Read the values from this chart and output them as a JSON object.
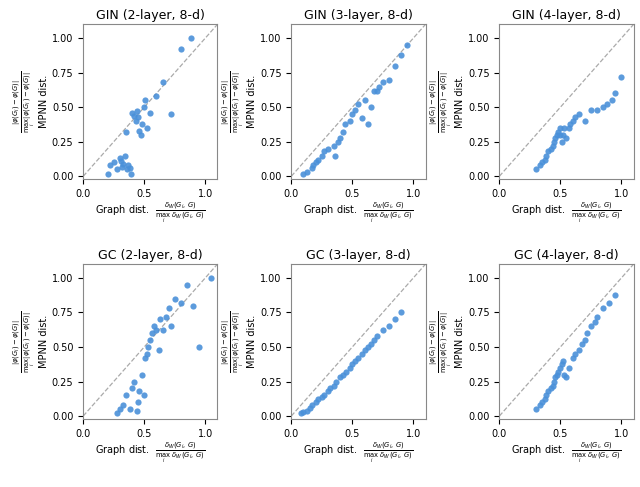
{
  "titles": [
    "GIN (2-layer, 8-d)",
    "GIN (3-layer, 8-d)",
    "GIN (4-layer, 8-d)",
    "GC (2-layer, 8-d)",
    "GC (3-layer, 8-d)",
    "GC (4-layer, 8-d)"
  ],
  "point_color": "#4A90D9",
  "point_size": 20,
  "alpha": 0.9,
  "scatter_data": [
    {
      "x": [
        0.2,
        0.22,
        0.25,
        0.28,
        0.3,
        0.31,
        0.32,
        0.33,
        0.34,
        0.35,
        0.36,
        0.37,
        0.38,
        0.39,
        0.4,
        0.42,
        0.43,
        0.44,
        0.45,
        0.46,
        0.47,
        0.48,
        0.5,
        0.51,
        0.52,
        0.55,
        0.6,
        0.65,
        0.72,
        0.8,
        0.88
      ],
      "y": [
        0.02,
        0.08,
        0.1,
        0.05,
        0.13,
        0.11,
        0.07,
        0.09,
        0.15,
        0.32,
        0.05,
        0.08,
        0.06,
        0.02,
        0.46,
        0.44,
        0.4,
        0.47,
        0.43,
        0.33,
        0.3,
        0.38,
        0.5,
        0.55,
        0.35,
        0.46,
        0.58,
        0.68,
        0.45,
        0.92,
        1.0
      ]
    },
    {
      "x": [
        0.1,
        0.13,
        0.17,
        0.18,
        0.2,
        0.22,
        0.25,
        0.27,
        0.3,
        0.35,
        0.36,
        0.38,
        0.4,
        0.42,
        0.44,
        0.48,
        0.5,
        0.52,
        0.55,
        0.58,
        0.6,
        0.63,
        0.65,
        0.68,
        0.7,
        0.72,
        0.75,
        0.8,
        0.85,
        0.9,
        0.95
      ],
      "y": [
        0.02,
        0.03,
        0.06,
        0.08,
        0.1,
        0.12,
        0.15,
        0.18,
        0.2,
        0.22,
        0.15,
        0.25,
        0.28,
        0.32,
        0.38,
        0.4,
        0.45,
        0.48,
        0.52,
        0.42,
        0.55,
        0.38,
        0.5,
        0.62,
        0.62,
        0.65,
        0.68,
        0.7,
        0.8,
        0.88,
        0.95
      ]
    },
    {
      "x": [
        0.3,
        0.33,
        0.35,
        0.37,
        0.38,
        0.4,
        0.42,
        0.44,
        0.45,
        0.46,
        0.47,
        0.48,
        0.5,
        0.5,
        0.51,
        0.52,
        0.53,
        0.55,
        0.57,
        0.58,
        0.6,
        0.62,
        0.65,
        0.7,
        0.75,
        0.8,
        0.85,
        0.88,
        0.92,
        0.95,
        1.0
      ],
      "y": [
        0.05,
        0.08,
        0.1,
        0.12,
        0.15,
        0.18,
        0.2,
        0.22,
        0.25,
        0.28,
        0.3,
        0.32,
        0.3,
        0.35,
        0.25,
        0.3,
        0.35,
        0.28,
        0.35,
        0.38,
        0.4,
        0.43,
        0.45,
        0.4,
        0.48,
        0.48,
        0.5,
        0.52,
        0.55,
        0.6,
        0.72
      ]
    },
    {
      "x": [
        0.28,
        0.3,
        0.33,
        0.35,
        0.38,
        0.4,
        0.42,
        0.44,
        0.45,
        0.46,
        0.48,
        0.5,
        0.51,
        0.52,
        0.53,
        0.55,
        0.56,
        0.58,
        0.6,
        0.62,
        0.63,
        0.65,
        0.68,
        0.7,
        0.72,
        0.75,
        0.8,
        0.85,
        0.9,
        0.95,
        1.05
      ],
      "y": [
        0.02,
        0.05,
        0.08,
        0.15,
        0.05,
        0.2,
        0.25,
        0.04,
        0.1,
        0.18,
        0.3,
        0.15,
        0.42,
        0.45,
        0.5,
        0.55,
        0.6,
        0.65,
        0.62,
        0.48,
        0.7,
        0.62,
        0.72,
        0.78,
        0.65,
        0.85,
        0.82,
        0.95,
        0.8,
        0.5,
        1.0
      ]
    },
    {
      "x": [
        0.08,
        0.1,
        0.13,
        0.15,
        0.17,
        0.2,
        0.22,
        0.25,
        0.27,
        0.3,
        0.32,
        0.35,
        0.37,
        0.4,
        0.42,
        0.45,
        0.48,
        0.5,
        0.52,
        0.55,
        0.58,
        0.6,
        0.63,
        0.65,
        0.68,
        0.7,
        0.75,
        0.8,
        0.85,
        0.9
      ],
      "y": [
        0.02,
        0.03,
        0.04,
        0.06,
        0.08,
        0.1,
        0.12,
        0.14,
        0.15,
        0.18,
        0.2,
        0.22,
        0.25,
        0.28,
        0.3,
        0.32,
        0.35,
        0.38,
        0.4,
        0.42,
        0.45,
        0.48,
        0.5,
        0.52,
        0.55,
        0.58,
        0.62,
        0.65,
        0.7,
        0.75
      ]
    },
    {
      "x": [
        0.3,
        0.33,
        0.35,
        0.37,
        0.38,
        0.4,
        0.42,
        0.44,
        0.45,
        0.46,
        0.47,
        0.48,
        0.5,
        0.51,
        0.52,
        0.53,
        0.55,
        0.57,
        0.6,
        0.62,
        0.65,
        0.68,
        0.7,
        0.72,
        0.75,
        0.78,
        0.8,
        0.85,
        0.9,
        0.95
      ],
      "y": [
        0.05,
        0.08,
        0.1,
        0.12,
        0.15,
        0.18,
        0.2,
        0.22,
        0.25,
        0.28,
        0.3,
        0.32,
        0.35,
        0.38,
        0.4,
        0.3,
        0.28,
        0.35,
        0.42,
        0.45,
        0.48,
        0.52,
        0.55,
        0.6,
        0.65,
        0.68,
        0.72,
        0.78,
        0.82,
        0.88
      ]
    }
  ],
  "xlim": [
    0.0,
    1.1
  ],
  "ylim": [
    -0.02,
    1.1
  ],
  "xticks": [
    0.0,
    0.5,
    1.0
  ],
  "yticks": [
    0.0,
    0.25,
    0.5,
    0.75,
    1.0
  ],
  "bg_color": "#ffffff",
  "diag_color": "#aaaaaa",
  "spine_color": "#888888",
  "tick_label_size": 7,
  "title_fontsize": 9,
  "xlabel_fontsize": 7,
  "ylabel_fontsize": 7
}
